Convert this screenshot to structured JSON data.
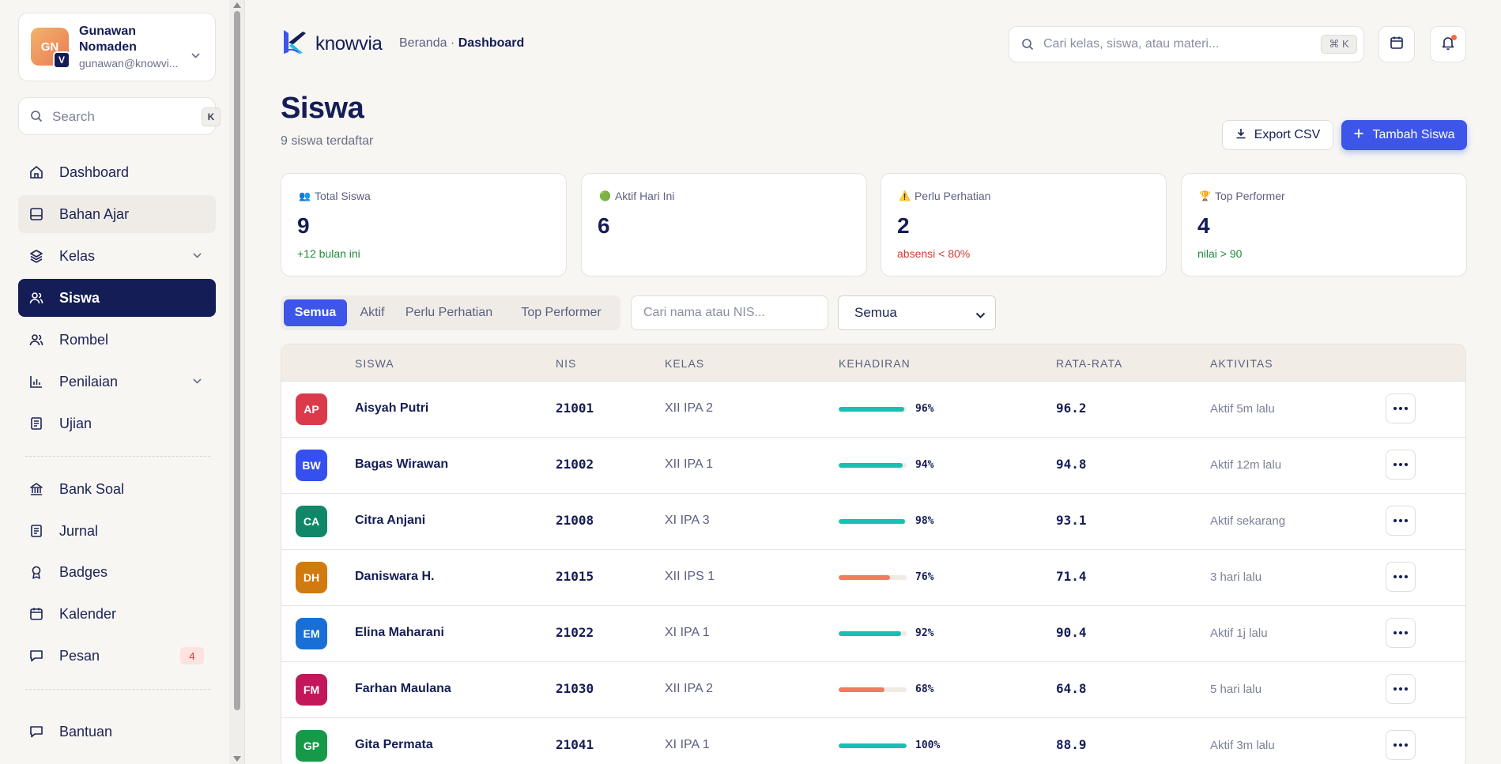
{
  "profile": {
    "initials": "GN",
    "badge": "V",
    "name": "Gunawan Nomaden",
    "email": "gunawan@knowvi..."
  },
  "sidebar": {
    "search_placeholder": "Search",
    "search_kbd": "K",
    "items": [
      {
        "label": "Dashboard",
        "icon": "home-icon"
      },
      {
        "label": "Bahan Ajar",
        "icon": "book-icon"
      },
      {
        "label": "Kelas",
        "icon": "layers-icon"
      },
      {
        "label": "Siswa",
        "icon": "users-icon"
      },
      {
        "label": "Rombel",
        "icon": "group-icon"
      },
      {
        "label": "Penilaian",
        "icon": "chart-icon"
      },
      {
        "label": "Ujian",
        "icon": "document-icon"
      },
      {
        "label": "Bank Soal",
        "icon": "bank-icon"
      },
      {
        "label": "Jurnal",
        "icon": "journal-icon"
      },
      {
        "label": "Badges",
        "icon": "award-icon"
      },
      {
        "label": "Kalender",
        "icon": "calendar-icon"
      },
      {
        "label": "Pesan",
        "icon": "message-icon",
        "badge": "4"
      },
      {
        "label": "Bantuan",
        "icon": "help-icon"
      }
    ]
  },
  "header": {
    "logo_text": "knowvia",
    "breadcrumb_root": "Beranda ·",
    "breadcrumb_current": "Dashboard",
    "search_placeholder": "Cari kelas, siswa, atau materi...",
    "search_kbd": "⌘ K"
  },
  "page": {
    "title": "Siswa",
    "subtitle": "9 siswa terdaftar",
    "export_label": "Export CSV",
    "add_label": "Tambah Siswa"
  },
  "stats": [
    {
      "emoji": "👥",
      "label": "Total Siswa",
      "value": "9",
      "note": "+12 bulan ini",
      "tone": "green"
    },
    {
      "emoji": "🟢",
      "label": "Aktif Hari Ini",
      "value": "6",
      "note": "",
      "tone": ""
    },
    {
      "emoji": "⚠️",
      "label": "Perlu Perhatian",
      "value": "2",
      "note": "absensi < 80%",
      "tone": "red"
    },
    {
      "emoji": "🏆",
      "label": "Top Performer",
      "value": "4",
      "note": "nilai > 90",
      "tone": "green"
    }
  ],
  "filters": {
    "tabs": [
      "Semua",
      "Aktif",
      "Perlu Perhatian",
      "Top Performer"
    ],
    "search_placeholder": "Cari nama atau NIS...",
    "select_value": "Semua"
  },
  "table": {
    "columns": [
      "SISWA",
      "NIS",
      "KELAS",
      "KEHADIRAN",
      "RATA-RATA",
      "AKTIVITAS"
    ],
    "rows": [
      {
        "initials": "AP",
        "color": "#dc3a4a",
        "name": "Aisyah Putri",
        "nis": "21001",
        "kelas": "XII IPA 2",
        "hadir": "96%",
        "hadir_value": 96,
        "avg": "96.2",
        "aktivitas": "Aktif 5m lalu"
      },
      {
        "initials": "BW",
        "color": "#3550ef",
        "name": "Bagas Wirawan",
        "nis": "21002",
        "kelas": "XII IPA 1",
        "hadir": "94%",
        "hadir_value": 94,
        "avg": "94.8",
        "aktivitas": "Aktif 12m lalu"
      },
      {
        "initials": "CA",
        "color": "#11876a",
        "name": "Citra Anjani",
        "nis": "21008",
        "kelas": "XI IPA 3",
        "hadir": "98%",
        "hadir_value": 98,
        "avg": "93.1",
        "aktivitas": "Aktif sekarang"
      },
      {
        "initials": "DH",
        "color": "#d07a0f",
        "name": "Daniswara H.",
        "nis": "21015",
        "kelas": "XII IPS 1",
        "hadir": "76%",
        "hadir_value": 76,
        "avg": "71.4",
        "aktivitas": "3 hari lalu"
      },
      {
        "initials": "EM",
        "color": "#1a6fd6",
        "name": "Elina Maharani",
        "nis": "21022",
        "kelas": "XI IPA 1",
        "hadir": "92%",
        "hadir_value": 92,
        "avg": "90.4",
        "aktivitas": "Aktif 1j lalu"
      },
      {
        "initials": "FM",
        "color": "#c2185b",
        "name": "Farhan Maulana",
        "nis": "21030",
        "kelas": "XII IPA 2",
        "hadir": "68%",
        "hadir_value": 68,
        "avg": "64.8",
        "aktivitas": "5 hari lalu"
      },
      {
        "initials": "GP",
        "color": "#169a4a",
        "name": "Gita Permata",
        "nis": "21041",
        "kelas": "XI IPA 1",
        "hadir": "100%",
        "hadir_value": 100,
        "avg": "88.9",
        "aktivitas": "Aktif 3m lalu"
      }
    ]
  },
  "colors": {
    "accent": "#3d55e8",
    "navy": "#141d56",
    "bar_good": "#19bfb3",
    "bar_warn": "#f07c5e"
  }
}
